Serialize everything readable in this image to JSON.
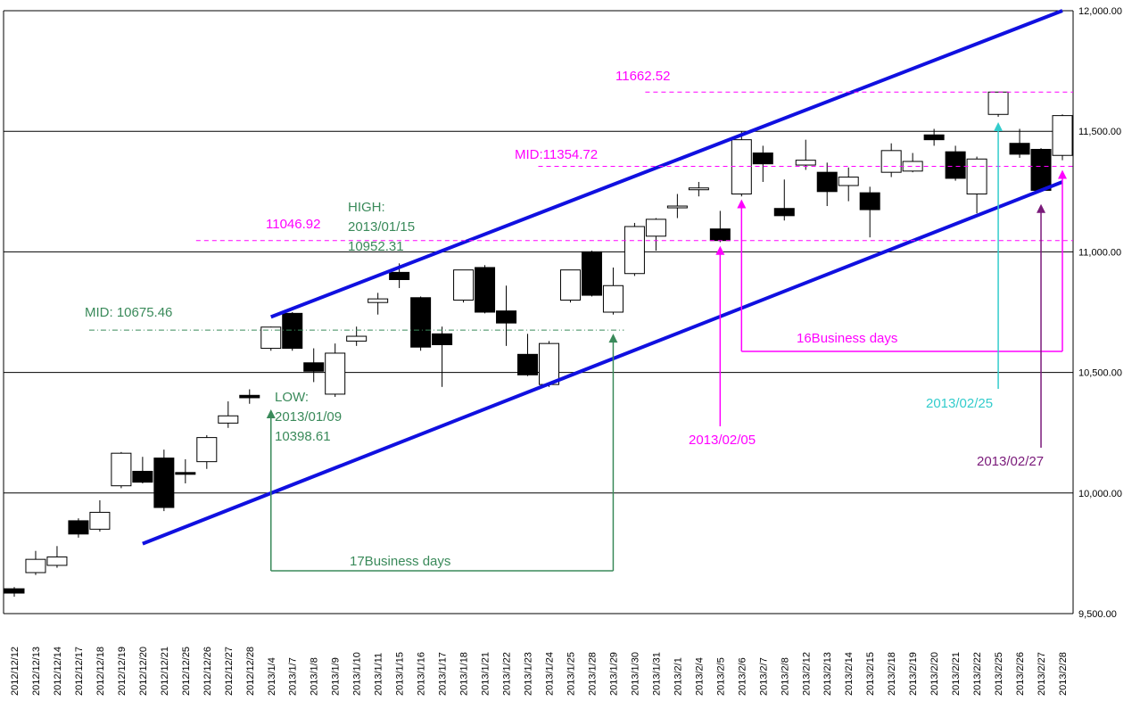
{
  "chart_data": {
    "type": "candlestick",
    "ylim": [
      9500,
      12000
    ],
    "yticks": [
      "9,500.00",
      "10,000.00",
      "10,500.00",
      "11,000.00",
      "11,500.00",
      "12,000.00"
    ],
    "ytick_values": [
      9500,
      10000,
      10500,
      11000,
      11500,
      12000
    ],
    "categories": [
      "2012/12/12",
      "2012/12/13",
      "2012/12/14",
      "2012/12/17",
      "2012/12/18",
      "2012/12/19",
      "2012/12/20",
      "2012/12/21",
      "2012/12/25",
      "2012/12/26",
      "2012/12/27",
      "2012/12/28",
      "2013/1/4",
      "2013/1/7",
      "2013/1/8",
      "2013/1/9",
      "2013/1/10",
      "2013/1/11",
      "2013/1/15",
      "2013/1/16",
      "2013/1/17",
      "2013/1/18",
      "2013/1/21",
      "2013/1/22",
      "2013/1/23",
      "2013/1/24",
      "2013/1/25",
      "2013/1/28",
      "2013/1/29",
      "2013/1/30",
      "2013/1/31",
      "2013/2/1",
      "2013/2/4",
      "2013/2/5",
      "2013/2/6",
      "2013/2/7",
      "2013/2/8",
      "2013/2/12",
      "2013/2/13",
      "2013/2/14",
      "2013/2/15",
      "2013/2/18",
      "2013/2/19",
      "2013/2/20",
      "2013/2/21",
      "2013/2/22",
      "2013/2/25",
      "2013/2/26",
      "2013/2/27",
      "2013/2/28"
    ],
    "ohlc": [
      [
        9603,
        9610,
        9570,
        9585
      ],
      [
        9670,
        9760,
        9660,
        9725
      ],
      [
        9700,
        9780,
        9690,
        9735
      ],
      [
        9885,
        9895,
        9815,
        9830
      ],
      [
        9850,
        9970,
        9840,
        9920
      ],
      [
        10030,
        10170,
        10020,
        10165
      ],
      [
        10090,
        10150,
        10040,
        10045
      ],
      [
        10145,
        10180,
        9925,
        9940
      ],
      [
        10085,
        10140,
        10040,
        10080
      ],
      [
        10130,
        10240,
        10100,
        10230
      ],
      [
        10290,
        10380,
        10270,
        10320
      ],
      [
        10405,
        10430,
        10370,
        10395
      ],
      [
        10600,
        10690,
        10590,
        10688
      ],
      [
        10745,
        10750,
        10590,
        10600
      ],
      [
        10540,
        10600,
        10460,
        10505
      ],
      [
        10410,
        10620,
        10398.61,
        10580
      ],
      [
        10630,
        10690,
        10610,
        10650
      ],
      [
        10790,
        10830,
        10740,
        10805
      ],
      [
        10915,
        10952.31,
        10850,
        10885
      ],
      [
        10810,
        10815,
        10590,
        10605
      ],
      [
        10660,
        10690,
        10440,
        10615
      ],
      [
        10800,
        10925,
        10790,
        10925
      ],
      [
        10935,
        10945,
        10745,
        10750
      ],
      [
        10755,
        10860,
        10610,
        10705
      ],
      [
        10575,
        10660,
        10485,
        10490
      ],
      [
        10450,
        10630,
        10440,
        10620
      ],
      [
        10800,
        10925,
        10790,
        10925
      ],
      [
        11000,
        11005,
        10815,
        10820
      ],
      [
        10750,
        10935,
        10740,
        10860
      ],
      [
        10910,
        11120,
        10900,
        11105
      ],
      [
        11065,
        11140,
        11005,
        11135
      ],
      [
        11190,
        11240,
        11140,
        11190
      ],
      [
        11260,
        11290,
        11230,
        11265
      ],
      [
        11095,
        11170,
        11040,
        11046.92
      ],
      [
        11240,
        11500,
        11230,
        11465
      ],
      [
        11410,
        11440,
        11290,
        11365
      ],
      [
        11180,
        11300,
        11130,
        11150
      ],
      [
        11360,
        11465,
        11340,
        11380
      ],
      [
        11330,
        11370,
        11190,
        11250
      ],
      [
        11275,
        11350,
        11210,
        11310
      ],
      [
        11245,
        11270,
        11060,
        11175
      ],
      [
        11330,
        11450,
        11310,
        11420
      ],
      [
        11335,
        11410,
        11330,
        11375
      ],
      [
        11485,
        11510,
        11440,
        11465
      ],
      [
        11415,
        11440,
        11295,
        11305
      ],
      [
        11240,
        11395,
        11160,
        11385
      ],
      [
        11570,
        11662.52,
        11560,
        11662.52
      ],
      [
        11450,
        11510,
        11390,
        11405
      ],
      [
        11425,
        11430,
        11250,
        11255
      ],
      [
        11400,
        11570,
        11380,
        11565
      ]
    ],
    "lines": [
      {
        "kind": "channel-upper",
        "from": [
          "2013/1/4",
          10730
        ],
        "to": [
          "2013/2/28",
          12000
        ]
      },
      {
        "kind": "channel-lower",
        "from": [
          "2012/12/20",
          9790
        ],
        "to": [
          "2013/2/28",
          11290
        ]
      },
      {
        "kind": "dashed",
        "value": 11662.52,
        "from": "2013/1/31",
        "to": "2013/2/28"
      },
      {
        "kind": "dashed",
        "value": 11354.72,
        "from": "2013/1/24",
        "to": "2013/2/28"
      },
      {
        "kind": "dashed",
        "value": 11046.92,
        "from": "2012/12/26",
        "to": "2013/2/28"
      },
      {
        "kind": "dashdot",
        "value": 10675.46,
        "from": "2012/12/18",
        "to": "2013/1/29"
      }
    ],
    "annotations": {
      "high_value": "11662.52",
      "mid_upper": "MID:11354.72",
      "low_value": "11046.92",
      "high_title": "HIGH:",
      "high_date": "2013/01/15",
      "high_price": "10952.31",
      "mid_lower": "MID: 10675.46",
      "low_title": "LOW:",
      "low_date": "2013/01/09",
      "low_price": "10398.61",
      "days_green": "17Business days",
      "days_magenta": "16Business days",
      "date_0205": "2013/02/05",
      "date_0225": "2013/02/25",
      "date_0227": "2013/02/27"
    },
    "colors": {
      "channel": "#1010e0",
      "magenta": "#ff00ff",
      "green": "#3a8a5a",
      "cyan": "#33cccc",
      "purple": "#7a1a7a"
    },
    "grid": true
  }
}
